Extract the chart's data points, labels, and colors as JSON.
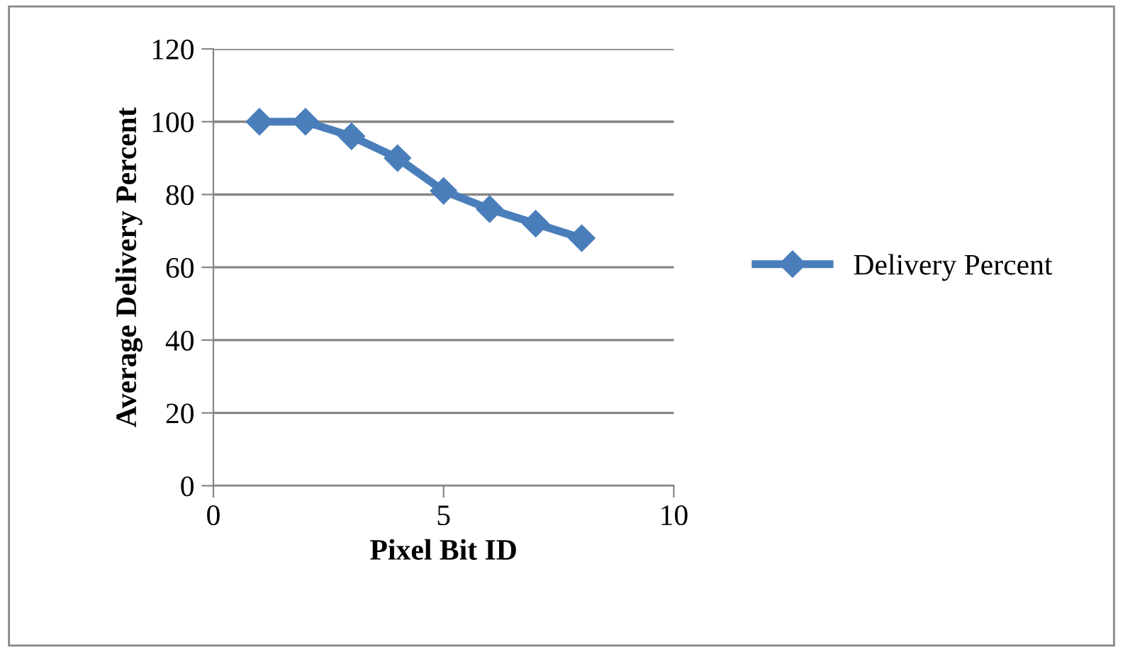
{
  "chart_data": {
    "type": "line",
    "xlabel": "Pixel Bit ID",
    "ylabel": "Average Delivery Percent",
    "x": [
      1,
      2,
      3,
      4,
      5,
      6,
      7,
      8
    ],
    "series": [
      {
        "name": "Delivery Percent",
        "color": "#4a7ebb",
        "values": [
          100,
          100,
          96,
          90,
          81,
          76,
          72,
          68
        ]
      }
    ],
    "xlim": [
      0,
      10
    ],
    "xticks": [
      0,
      5,
      10
    ],
    "ylim": [
      0,
      120
    ],
    "yticks": [
      0,
      20,
      40,
      60,
      80,
      100,
      120
    ],
    "grid": "y",
    "legend": "right",
    "marker": "diamond",
    "line_style": "solid"
  }
}
